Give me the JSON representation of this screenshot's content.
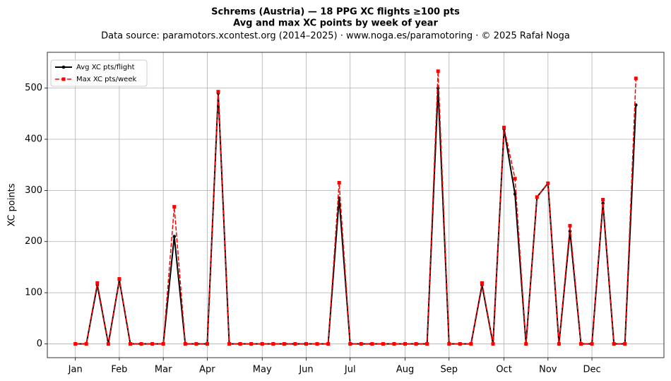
{
  "chart_data": {
    "type": "line",
    "title": [
      "Schrems (Austria)  —  18 PPG XC flights ≥100 pts",
      "Avg and max XC points by week of year"
    ],
    "subtitle": "Data source: paramotors.xcontest.org (2014–2025)  ·  www.noga.es/paramotoring  ·  © 2025 Rafał Noga",
    "y_label": "XC points",
    "x": [
      1,
      2,
      3,
      4,
      5,
      6,
      7,
      8,
      9,
      10,
      11,
      12,
      13,
      14,
      15,
      16,
      17,
      18,
      19,
      20,
      21,
      22,
      23,
      24,
      25,
      26,
      27,
      28,
      29,
      30,
      31,
      32,
      33,
      34,
      35,
      36,
      37,
      38,
      39,
      40,
      41,
      42,
      43,
      44,
      45,
      46,
      47,
      48,
      49,
      50,
      51,
      52
    ],
    "series": [
      {
        "name": "Avg XC pts/flight",
        "color": "#000000",
        "style": "solid",
        "marker": "circle",
        "values": [
          0,
          0,
          115,
          0,
          125,
          0,
          0,
          0,
          0,
          210,
          0,
          0,
          0,
          490,
          0,
          0,
          0,
          0,
          0,
          0,
          0,
          0,
          0,
          0,
          285,
          0,
          0,
          0,
          0,
          0,
          0,
          0,
          0,
          500,
          0,
          0,
          0,
          115,
          0,
          420,
          293,
          0,
          287,
          314,
          0,
          220,
          0,
          0,
          275,
          0,
          0,
          467
        ]
      },
      {
        "name": "Max XC pts/week",
        "color": "#ff0000",
        "style": "dashed",
        "marker": "square",
        "values": [
          0,
          0,
          119,
          0,
          127,
          0,
          0,
          0,
          0,
          268,
          0,
          0,
          0,
          493,
          0,
          0,
          0,
          0,
          0,
          0,
          0,
          0,
          0,
          0,
          315,
          0,
          0,
          0,
          0,
          0,
          0,
          0,
          0,
          533,
          0,
          0,
          0,
          119,
          0,
          423,
          323,
          0,
          287,
          314,
          0,
          231,
          0,
          0,
          282,
          0,
          0,
          519
        ]
      }
    ],
    "xlim": [
      -1.55,
      54.55
    ],
    "xticks": [
      {
        "value": 1,
        "label": "Jan"
      },
      {
        "value": 5,
        "label": "Feb"
      },
      {
        "value": 9,
        "label": "Mar"
      },
      {
        "value": 13,
        "label": "Apr"
      },
      {
        "value": 18,
        "label": "May"
      },
      {
        "value": 22,
        "label": "Jun"
      },
      {
        "value": 26,
        "label": "Jul"
      },
      {
        "value": 31,
        "label": "Aug"
      },
      {
        "value": 35,
        "label": "Sep"
      },
      {
        "value": 40,
        "label": "Oct"
      },
      {
        "value": 44,
        "label": "Nov"
      },
      {
        "value": 48,
        "label": "Dec"
      }
    ],
    "ylim": [
      -27,
      570
    ],
    "yticks": [
      0,
      100,
      200,
      300,
      400,
      500
    ],
    "grid": true,
    "legend": "upper left"
  }
}
